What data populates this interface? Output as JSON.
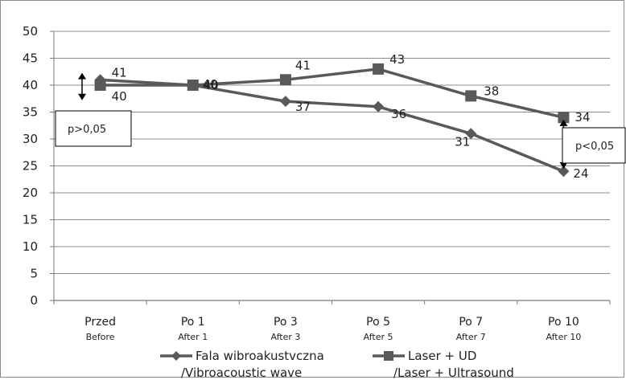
{
  "chart_data": {
    "type": "line",
    "title": "",
    "xlabel": "",
    "ylabel": "",
    "ylim": [
      0,
      50
    ],
    "yticks": [
      0,
      5,
      10,
      15,
      20,
      25,
      30,
      35,
      40,
      45,
      50
    ],
    "grid": true,
    "legend_position": "bottom",
    "categories": [
      {
        "main": "Przed",
        "sub": "Before"
      },
      {
        "main": "Po 1",
        "sub": "After 1"
      },
      {
        "main": "Po 3",
        "sub": "After 3"
      },
      {
        "main": "Po 5",
        "sub": "After 5"
      },
      {
        "main": "Po 7",
        "sub": "After 7"
      },
      {
        "main": "Po 10",
        "sub": "After 10"
      }
    ],
    "series": [
      {
        "name": "Fala wibroakustvczna /Vibroacoustic wave",
        "legend_lines": [
          "Fala wibroakustvczna",
          "/Vibroacoustic wave"
        ],
        "marker": "diamond",
        "values": [
          41,
          40,
          37,
          36,
          31,
          24
        ],
        "color": "#595959"
      },
      {
        "name": "Laser + UD /Laser + Ultrasound",
        "legend_lines": [
          "Laser + UD",
          "/Laser + Ultrasound"
        ],
        "marker": "square",
        "values": [
          40,
          40,
          41,
          43,
          38,
          34
        ],
        "color": "#595959"
      }
    ],
    "annotations": [
      {
        "text": "p>0,05",
        "category_index": 0
      },
      {
        "text": "p<0,05",
        "category_index": 5
      }
    ]
  }
}
